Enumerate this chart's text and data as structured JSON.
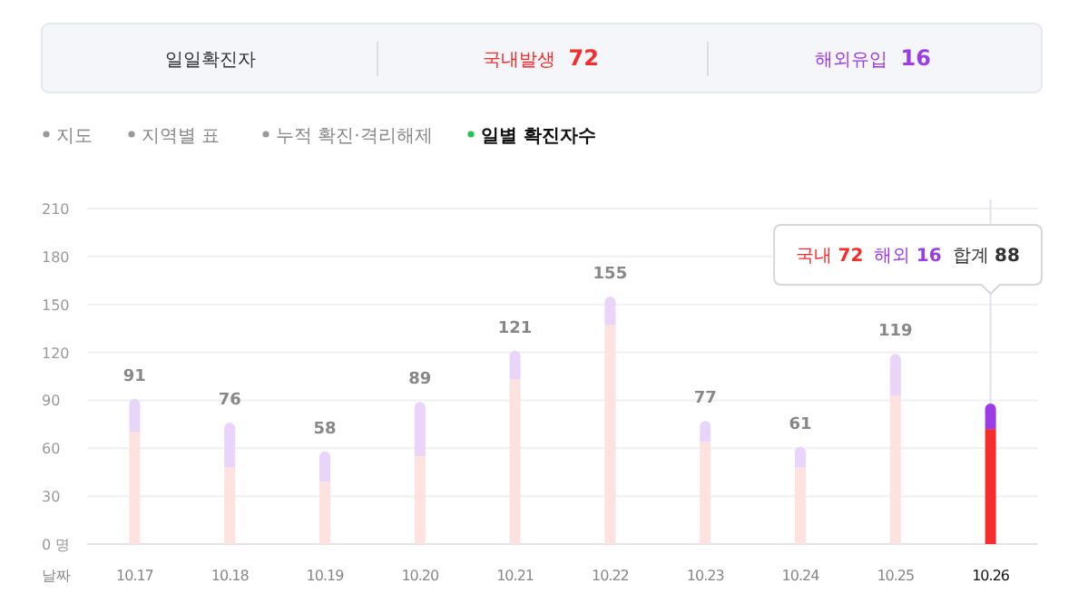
{
  "chart_data": {
    "type": "bar",
    "stacked": true,
    "categories": [
      "10.17",
      "10.18",
      "10.19",
      "10.20",
      "10.21",
      "10.22",
      "10.23",
      "10.24",
      "10.25",
      "10.26"
    ],
    "series": [
      {
        "color": "#f52d2d",
        "colors": [
          "#fde2df",
          "#fde2df",
          "#fde2df",
          "#fde2df",
          "#fde2df",
          "#fde2df",
          "#fde2df",
          "#fde2df",
          "#fde2df",
          "#f52d2d"
        ],
        "values": [
          70,
          48,
          39,
          55,
          103,
          137,
          64,
          48,
          93,
          72
        ]
      },
      {
        "color": "#9b3ce6",
        "colors": [
          "#e9d5fa",
          "#e9d5fa",
          "#e9d5fa",
          "#e9d5fa",
          "#e9d5fa",
          "#e9d5fa",
          "#e9d5fa",
          "#e9d5fa",
          "#e9d5fa",
          "#9b3ce6"
        ],
        "values": [
          21,
          28,
          19,
          34,
          18,
          18,
          13,
          13,
          26,
          16
        ]
      }
    ],
    "totals": [
      "91",
      "76",
      "58",
      "89",
      "121",
      "155",
      "77",
      "61",
      "119",
      null
    ],
    "xlabel": "날짜",
    "ylim": [
      0,
      210
    ],
    "yticks": [
      {
        "value": 0,
        "label": "0 명"
      },
      30,
      60,
      90,
      120,
      150,
      180,
      210
    ],
    "grid": "y",
    "ref_lines": [
      {
        "axis": "x",
        "value": "10.26",
        "color": "#e2e2f2"
      }
    ],
    "annotations": [
      "일일확진자",
      "국내발생 **72**",
      "해외유입 **16**",
      "지도",
      "지역별 표",
      "누적 확진·격리해제",
      "일별 확진자수",
      "국내 **72**",
      "해외 **16**",
      "합계 **88**"
    ]
  }
}
